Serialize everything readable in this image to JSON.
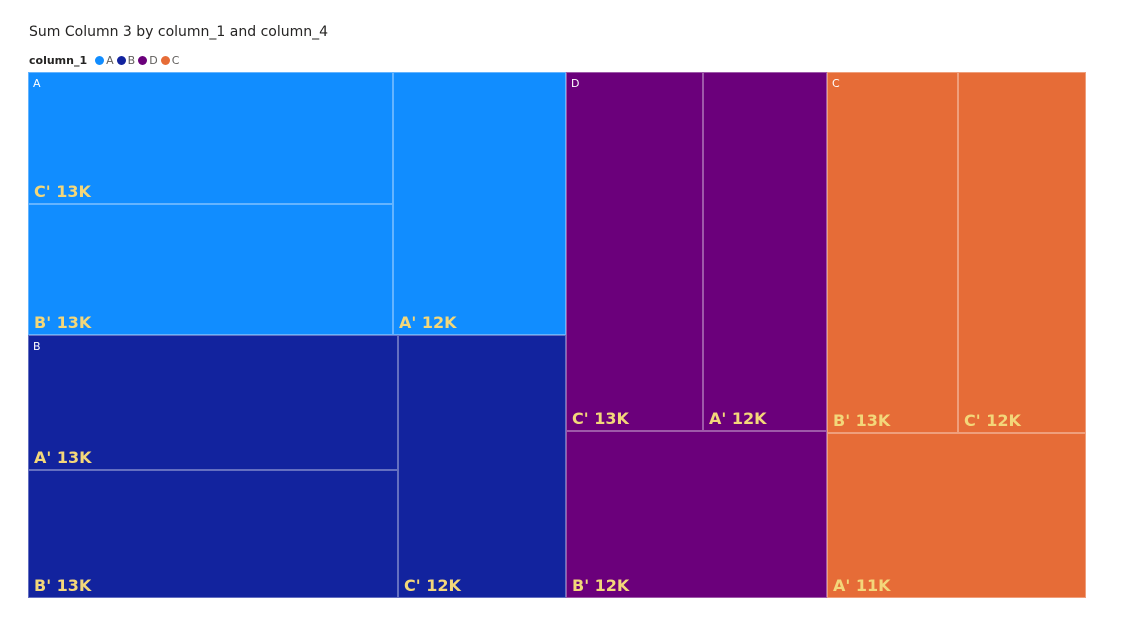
{
  "chart_data": {
    "type": "treemap",
    "title": "Sum Column 3 by column_1 and column_4",
    "legend": {
      "title": "column_1",
      "placement": "top-left",
      "items": [
        {
          "name": "A",
          "color": "#118dff"
        },
        {
          "name": "B",
          "color": "#12239e"
        },
        {
          "name": "D",
          "color": "#6b007b"
        },
        {
          "name": "C",
          "color": "#e66c37"
        }
      ]
    },
    "groups": [
      {
        "name": "A",
        "color": "#118dff",
        "children": [
          {
            "name": "C'",
            "label": "13K",
            "value": 13000
          },
          {
            "name": "B'",
            "label": "13K",
            "value": 13000
          },
          {
            "name": "A'",
            "label": "12K",
            "value": 12000
          }
        ]
      },
      {
        "name": "B",
        "color": "#12239e",
        "children": [
          {
            "name": "A'",
            "label": "13K",
            "value": 13000
          },
          {
            "name": "B'",
            "label": "13K",
            "value": 13000
          },
          {
            "name": "C'",
            "label": "12K",
            "value": 12000
          }
        ]
      },
      {
        "name": "D",
        "color": "#6b007b",
        "children": [
          {
            "name": "C'",
            "label": "13K",
            "value": 13000
          },
          {
            "name": "A'",
            "label": "12K",
            "value": 12000
          },
          {
            "name": "B'",
            "label": "12K",
            "value": 12000
          }
        ]
      },
      {
        "name": "C",
        "color": "#e66c37",
        "children": [
          {
            "name": "B'",
            "label": "13K",
            "value": 13000
          },
          {
            "name": "C'",
            "label": "12K",
            "value": 12000
          },
          {
            "name": "A'",
            "label": "11K",
            "value": 11000
          }
        ]
      }
    ]
  }
}
